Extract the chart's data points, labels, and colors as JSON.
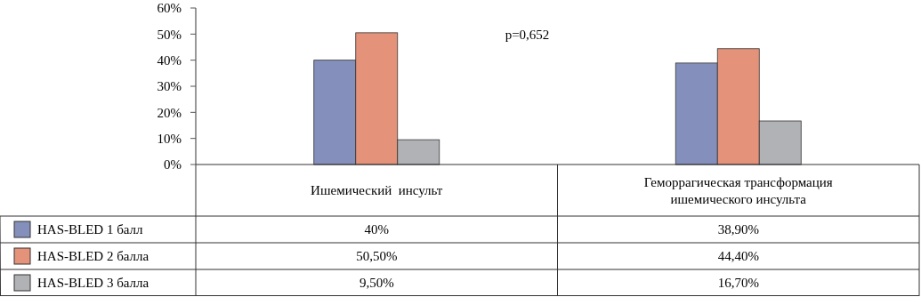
{
  "chart_data": {
    "type": "bar",
    "categories": [
      "Ишемический  инсульт",
      "Геморрагическая трансформация ишемического инсульта"
    ],
    "series": [
      {
        "name": "HAS-BLED 1 балл",
        "color": "#8490bb",
        "values": [
          40,
          38.9
        ],
        "value_labels": [
          "40%",
          "38,90%"
        ]
      },
      {
        "name": "HAS-BLED 2 балла",
        "color": "#e4927a",
        "values": [
          50.5,
          44.4
        ],
        "value_labels": [
          "50,50%",
          "44,40%"
        ]
      },
      {
        "name": "HAS-BLED 3 балла",
        "color": "#b1b2b6",
        "values": [
          9.5,
          16.7
        ],
        "value_labels": [
          "9,50%",
          "16,70%"
        ]
      }
    ],
    "ylim": [
      0,
      60
    ],
    "yticks": [
      {
        "value": 0,
        "label": "0%"
      },
      {
        "value": 10,
        "label": "10%"
      },
      {
        "value": 20,
        "label": "20%"
      },
      {
        "value": 30,
        "label": "30%"
      },
      {
        "value": 40,
        "label": "40%"
      },
      {
        "value": 50,
        "label": "50%"
      },
      {
        "value": 60,
        "label": "60%"
      }
    ],
    "legend": "bottom",
    "annotations": [
      "p=0,652"
    ]
  }
}
